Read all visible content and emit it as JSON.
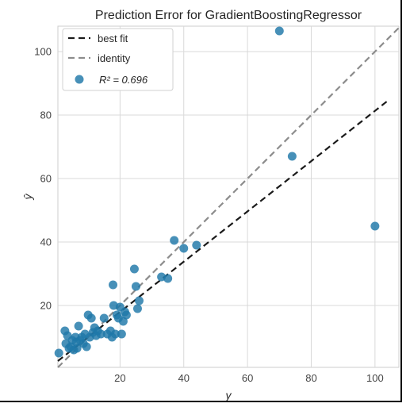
{
  "chart_data": {
    "type": "scatter",
    "title": "Prediction Error for GradientBoostingRegressor",
    "xlabel": "y",
    "ylabel": "ŷ",
    "xlim": [
      0.5,
      107.5
    ],
    "ylim": [
      0.5,
      108
    ],
    "xticks": [
      20,
      40,
      60,
      80,
      100
    ],
    "yticks": [
      20,
      40,
      60,
      80,
      100
    ],
    "grid": true,
    "legend_position": "top-left",
    "legend": {
      "best_fit": "best fit",
      "identity": "identity",
      "r2_label": "R² = 0.696"
    },
    "best_fit_line": {
      "x": [
        0.5,
        104
      ],
      "y": [
        2.5,
        84.5
      ]
    },
    "identity_line": {
      "x": [
        0.5,
        107.5
      ],
      "y": [
        0.5,
        107.5
      ]
    },
    "points": {
      "x": [
        0.8,
        2.7,
        3.0,
        3.5,
        4.0,
        4.5,
        5.0,
        5.5,
        6.0,
        6.3,
        6.5,
        7.0,
        7.5,
        8.0,
        8.5,
        9.0,
        9.5,
        10.0,
        10.5,
        11.0,
        11.5,
        12.0,
        12.5,
        13.0,
        14.0,
        15.0,
        16.0,
        17.0,
        17.5,
        17.8,
        18.0,
        18.5,
        19.0,
        19.5,
        20.0,
        20.5,
        21.0,
        21.5,
        22.0,
        24.5,
        25.0,
        25.5,
        26.0,
        33.0,
        35.0,
        37.0,
        40.0,
        44.0,
        70.0,
        74.0,
        100.0
      ],
      "y": [
        5.0,
        12.0,
        8.0,
        10.5,
        6.5,
        7.0,
        9.0,
        6.0,
        10.0,
        8.5,
        6.5,
        13.5,
        9.0,
        10.0,
        8.0,
        11.0,
        7.0,
        17.0,
        10.0,
        16.0,
        11.5,
        13.0,
        10.5,
        12.0,
        11.0,
        16.0,
        11.0,
        12.0,
        10.0,
        26.5,
        20.0,
        11.0,
        17.0,
        16.0,
        19.5,
        11.0,
        15.0,
        18.0,
        17.0,
        31.5,
        26.0,
        19.0,
        21.5,
        29.0,
        28.5,
        40.5,
        38.0,
        39.0,
        106.5,
        67.0,
        45.0
      ]
    },
    "colors": {
      "points": "#1f78a8",
      "best_fit": "#1a1a1a",
      "identity": "#8c8c8c",
      "grid": "#d9d9d9"
    }
  }
}
